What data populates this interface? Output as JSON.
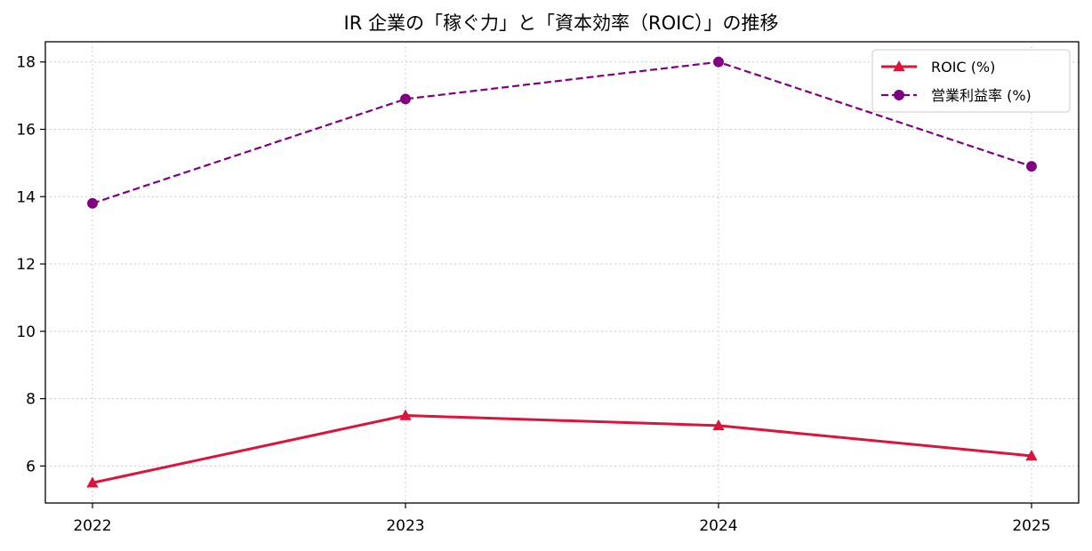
{
  "chart_data": {
    "type": "line",
    "title": "IR 企業の「稼ぐ力」と「資本効率（ROIC）」の推移",
    "xlabel": "",
    "ylabel": "",
    "x": [
      "2022",
      "2023",
      "2024",
      "2025"
    ],
    "ylim": [
      4.9,
      18.6
    ],
    "yticks": [
      6,
      8,
      10,
      12,
      14,
      16,
      18
    ],
    "grid": true,
    "legend_position": "top-right",
    "series": [
      {
        "name": "ROIC (%)",
        "values": [
          5.5,
          7.5,
          7.2,
          6.3
        ],
        "color": "#dc143c",
        "line_style": "solid",
        "marker": "triangle"
      },
      {
        "name": "営業利益率 (%)",
        "values": [
          13.8,
          16.9,
          18.0,
          14.9
        ],
        "color": "#800080",
        "line_style": "dashed",
        "marker": "circle"
      }
    ]
  }
}
